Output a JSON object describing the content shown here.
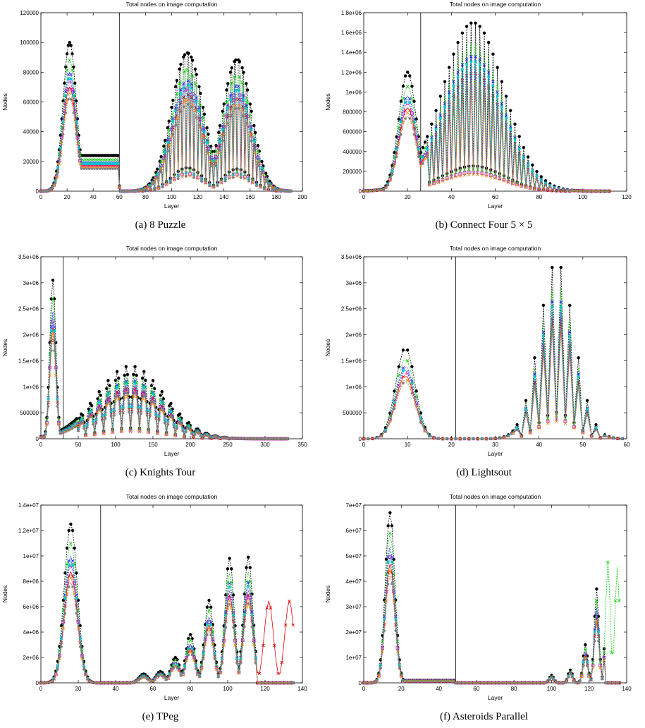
{
  "figure": {
    "colors": {
      "black": "#000000",
      "red": "#e00000",
      "green": "#00d000",
      "blue": "#2020ff",
      "magenta": "#c000c0",
      "cyan": "#00c8c8",
      "orange": "#ff8c00",
      "gray": "#808080"
    }
  },
  "chart_data": [
    {
      "type": "line",
      "id": "a",
      "caption": "(a) 8 Puzzle",
      "title": "Total nodes on image computation",
      "xlabel": "Layer",
      "ylabel": "Nodes",
      "xlim": [
        0,
        200
      ],
      "ylim": [
        0,
        120000
      ],
      "xticks": [
        "0",
        "20",
        "40",
        "60",
        "80",
        "100",
        "120",
        "140",
        "160",
        "180",
        "200"
      ],
      "yticks": [
        "0",
        "20000",
        "40000",
        "60000",
        "80000",
        "100000",
        "120000"
      ],
      "divider_x": 60,
      "series_profile": {
        "peaks": [
          [
            22,
            100000,
            5
          ],
          [
            112,
            105000,
            12
          ],
          [
            150,
            100000,
            11
          ]
        ],
        "plateau": [
          28,
          60,
          24000
        ],
        "oscillation": [
          60,
          185,
          3
        ],
        "xmax": 191
      }
    },
    {
      "type": "line",
      "id": "b",
      "caption": "(b) Connect Four 5 × 5",
      "title": "Total nodes on image computation",
      "xlabel": "Layer",
      "ylabel": "Nodes",
      "xlim": [
        0,
        120
      ],
      "ylim": [
        0,
        1800000
      ],
      "xticks": [
        "0",
        "20",
        "40",
        "60",
        "80",
        "100",
        "120"
      ],
      "yticks": [
        "0",
        "200000",
        "400000",
        "600000",
        "800000",
        "1e+06",
        "1.2e+06",
        "1.4e+06",
        "1.6e+06",
        "1.8e+06"
      ],
      "divider_x": 26,
      "series_profile": {
        "peaks": [
          [
            20,
            1200000,
            4
          ],
          [
            50,
            1700000,
            14
          ]
        ],
        "oscillation": [
          30,
          95,
          2
        ],
        "xmax": 112
      }
    },
    {
      "type": "line",
      "id": "c",
      "caption": "(c) Knights Tour",
      "title": "Total nodes on image computation",
      "xlabel": "Layer",
      "ylabel": "Nodes",
      "xlim": [
        0,
        350
      ],
      "ylim": [
        0,
        3500000
      ],
      "xticks": [
        "0",
        "50",
        "100",
        "150",
        "200",
        "250",
        "300",
        "350"
      ],
      "yticks": [
        "0",
        "500000",
        "1e+06",
        "1.5e+06",
        "2e+06",
        "2.5e+06",
        "3e+06",
        "3.5e+06"
      ],
      "divider_x": 30,
      "series_profile": {
        "peaks": [
          [
            16,
            3050000,
            4
          ],
          [
            120,
            1400000,
            45
          ]
        ],
        "oscillation": [
          50,
          260,
          12
        ],
        "xmax": 330
      }
    },
    {
      "type": "line",
      "id": "d",
      "caption": "(d) Lightsout",
      "title": "Total nodes on image computation",
      "xlabel": "Layer",
      "ylabel": "Nodes",
      "xlim": [
        0,
        60
      ],
      "ylim": [
        0,
        3500000
      ],
      "xticks": [
        "0",
        "10",
        "20",
        "30",
        "40",
        "50",
        "60"
      ],
      "yticks": [
        "0",
        "500000",
        "1e+06",
        "1.5e+06",
        "2e+06",
        "2.5e+06",
        "3e+06",
        "3.5e+06"
      ],
      "divider_x": 21,
      "series_profile": {
        "peaks": [
          [
            9.5,
            1750000,
            2.2
          ],
          [
            44,
            3400000,
            4
          ]
        ],
        "oscillation": [
          36,
          54,
          2
        ],
        "xmax": 59
      }
    },
    {
      "type": "line",
      "id": "e",
      "caption": "(e) TPeg",
      "title": "Total nodes on image computation",
      "xlabel": "Layer",
      "ylabel": "Nodes",
      "xlim": [
        0,
        140
      ],
      "ylim": [
        0,
        14000000
      ],
      "xticks": [
        "0",
        "20",
        "40",
        "60",
        "80",
        "100",
        "120",
        "140"
      ],
      "yticks": [
        "0",
        "2e+06",
        "4e+06",
        "6e+06",
        "8e+06",
        "1e+07",
        "1.2e+07",
        "1.4e+07"
      ],
      "divider_x": 32,
      "series_profile": {
        "peaks": [
          [
            16,
            12500000,
            3.5
          ]
        ],
        "growing_bursts": [
          [
            55,
            4,
            700000
          ],
          [
            64,
            4,
            900000
          ],
          [
            72,
            4,
            2000000
          ],
          [
            80,
            4,
            3800000
          ],
          [
            90,
            4,
            6500000
          ],
          [
            101,
            4,
            9800000
          ],
          [
            111,
            4,
            9900000
          ],
          [
            122,
            4,
            9200000
          ],
          [
            133,
            4,
            9200000
          ]
        ],
        "xmax": 135
      }
    },
    {
      "type": "line",
      "id": "f",
      "caption": "(f) Asteroids Parallel",
      "title": "Total nodes on image computation",
      "xlabel": "Layer",
      "ylabel": "Nodes",
      "xlim": [
        0,
        140
      ],
      "ylim": [
        0,
        70000000
      ],
      "xticks": [
        "0",
        "20",
        "40",
        "60",
        "80",
        "100",
        "120",
        "140"
      ],
      "yticks": [
        "0",
        "1e+07",
        "2e+07",
        "3e+07",
        "4e+07",
        "5e+07",
        "6e+07",
        "7e+07"
      ],
      "divider_x": 49,
      "series_profile": {
        "peaks": [
          [
            14,
            67000000,
            2.5
          ]
        ],
        "plateau": [
          18,
          48,
          1000000
        ],
        "growing_bursts": [
          [
            100,
            2,
            3000000
          ],
          [
            110,
            2,
            5000000
          ],
          [
            118,
            2,
            15000000
          ],
          [
            124,
            2,
            37000000
          ],
          [
            130,
            2,
            54000000
          ],
          [
            135,
            2,
            52000000
          ]
        ],
        "xmax": 136
      }
    }
  ]
}
